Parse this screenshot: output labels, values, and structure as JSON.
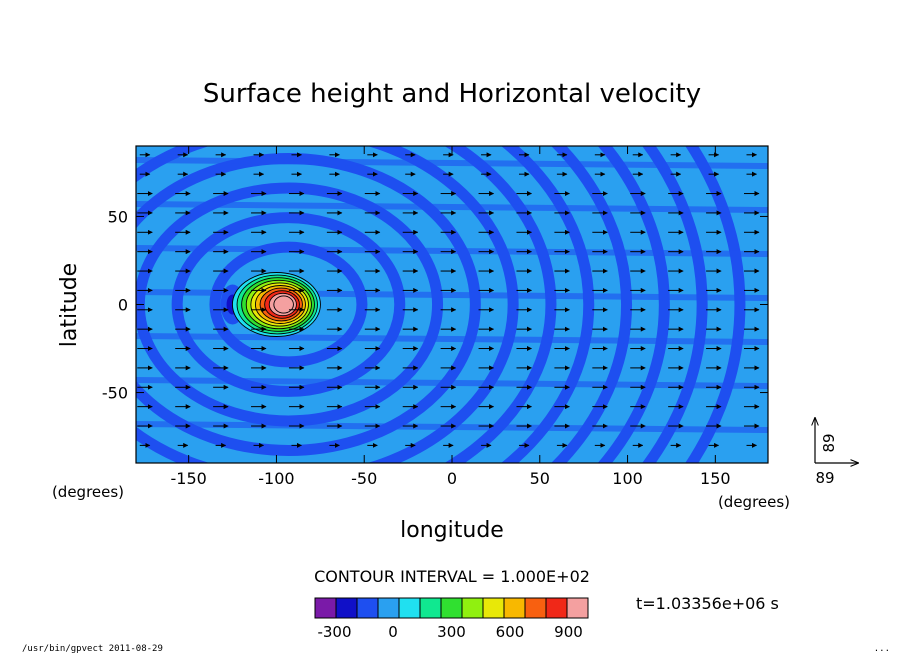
{
  "chart_data": {
    "type": "heatmap",
    "title": "Surface height and Horizontal velocity",
    "xlabel": "longitude",
    "ylabel": "latitude",
    "x_unit": "(degrees)",
    "y_unit": "(degrees)",
    "xlim": [
      -180,
      180
    ],
    "ylim": [
      -90,
      90
    ],
    "x_ticks": [
      -150,
      -100,
      -50,
      0,
      50,
      100,
      150
    ],
    "y_ticks": [
      50,
      0,
      -50
    ],
    "field": "surface height",
    "vector_field": "horizontal velocity",
    "vector_reference": {
      "x_label": "89",
      "y_label": "89"
    },
    "contour_interval_label": "CONTOUR INTERVAL = 1.000E+02",
    "contour_interval": 100,
    "colorbar": {
      "levels": [
        -400,
        -300,
        -200,
        -100,
        0,
        100,
        200,
        300,
        400,
        500,
        600,
        700,
        800,
        900,
        1000
      ],
      "tick_labels": [
        "-300",
        "0",
        "300",
        "600",
        "900"
      ],
      "tick_values": [
        -300,
        0,
        300,
        600,
        900
      ],
      "colors": [
        "#7a1aa8",
        "#1010c8",
        "#1e4ff0",
        "#2aa0f0",
        "#20e0f0",
        "#10e890",
        "#30e030",
        "#90f010",
        "#e8e808",
        "#f8b800",
        "#f86010",
        "#f02818",
        "#f4a0a0"
      ]
    },
    "features": {
      "hill_center": {
        "lon": -100,
        "lat": 0
      },
      "hill_peak_level": 900,
      "trough": {
        "lon": -125,
        "lat": 0,
        "level": -300
      }
    },
    "time_label": "t=1.03356e+06 s"
  },
  "footer": {
    "left": "/usr/bin/gpvect  2011-08-29",
    "right": "..."
  }
}
